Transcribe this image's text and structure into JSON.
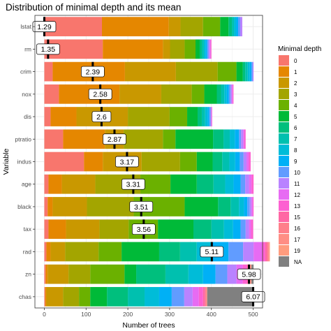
{
  "chart_data": {
    "type": "bar",
    "orientation": "horizontal",
    "stacked": true,
    "title": "Distribution of minimal depth and its mean",
    "xlabel": "Number of trees",
    "ylabel": "Variable",
    "xlim": [
      0,
      500
    ],
    "xticks": [
      0,
      100,
      200,
      300,
      400,
      500
    ],
    "grid": true,
    "legend_position": "right",
    "legend_title": "Minimal depth",
    "depth_levels": [
      "0",
      "1",
      "2",
      "3",
      "4",
      "5",
      "6",
      "7",
      "8",
      "9",
      "10",
      "11",
      "12",
      "13",
      "15",
      "16",
      "17",
      "19",
      "NA"
    ],
    "depth_colors": [
      "#F8766D",
      "#E58700",
      "#C99800",
      "#A3A500",
      "#6BB100",
      "#00BA38",
      "#00BF7D",
      "#00C0AF",
      "#00BCD8",
      "#00B0F6",
      "#619CFF",
      "#B983FF",
      "#E76BF3",
      "#FD61D1",
      "#FF67A4",
      "#FF7F8A",
      "#FF8E84",
      "#FF9C7E",
      "#808080"
    ],
    "categories": [
      "lstat",
      "rm",
      "crim",
      "nox",
      "dis",
      "ptratio",
      "indus",
      "age",
      "black",
      "tax",
      "rad",
      "zn",
      "chas"
    ],
    "counts": [
      [
        138,
        160,
        28,
        54,
        41,
        20,
        8,
        5,
        5,
        5,
        5,
        5,
        0,
        0,
        0,
        0,
        0,
        0,
        0
      ],
      [
        140,
        144,
        17,
        35,
        26,
        10,
        5,
        5,
        4,
        4,
        3,
        3,
        2,
        2,
        0,
        0,
        0,
        0,
        0
      ],
      [
        20,
        173,
        122,
        100,
        45,
        15,
        6,
        6,
        5,
        4,
        3,
        2,
        0,
        0,
        0,
        0,
        0,
        0,
        0
      ],
      [
        35,
        145,
        100,
        73,
        30,
        30,
        10,
        8,
        6,
        5,
        4,
        3,
        2,
        2,
        0,
        0,
        0,
        0,
        0
      ],
      [
        15,
        62,
        123,
        100,
        42,
        25,
        10,
        8,
        6,
        4,
        3,
        2,
        1,
        1,
        0,
        0,
        0,
        0,
        0
      ],
      [
        45,
        100,
        45,
        94,
        30,
        90,
        25,
        15,
        12,
        10,
        5,
        5,
        3,
        3,
        0,
        0,
        0,
        0,
        0
      ],
      [
        95,
        45,
        93,
        92,
        40,
        38,
        23,
        17,
        14,
        11,
        9,
        7,
        5,
        5,
        0,
        0,
        0,
        0,
        0
      ],
      [
        10,
        32,
        80,
        108,
        72,
        63,
        40,
        28,
        20,
        17,
        11,
        9,
        6,
        5,
        0,
        0,
        0,
        0,
        0
      ],
      [
        8,
        12,
        82,
        112,
        122,
        80,
        30,
        20,
        12,
        8,
        6,
        4,
        3,
        2,
        0,
        0,
        0,
        0,
        0
      ],
      [
        10,
        42,
        80,
        70,
        70,
        85,
        43,
        30,
        22,
        18,
        12,
        8,
        5,
        5,
        0,
        0,
        0,
        0,
        0
      ],
      [
        5,
        10,
        35,
        80,
        55,
        90,
        50,
        40,
        36,
        40,
        35,
        25,
        20,
        8,
        5,
        3,
        2,
        1,
        0
      ],
      [
        3,
        5,
        50,
        52,
        82,
        28,
        70,
        55,
        35,
        30,
        28,
        22,
        15,
        10,
        5,
        3,
        2,
        1,
        5
      ],
      [
        2,
        3,
        40,
        38,
        27,
        40,
        50,
        40,
        35,
        30,
        30,
        20,
        15,
        10,
        5,
        3,
        2,
        0,
        110
      ]
    ],
    "means": [
      1.29,
      1.35,
      2.39,
      2.58,
      2.6,
      2.87,
      3.17,
      3.31,
      3.51,
      3.56,
      5.11,
      5.98,
      6.07
    ],
    "mean_positions": [
      0,
      9,
      116,
      134,
      137,
      168,
      198,
      213,
      232,
      238,
      401,
      490,
      500
    ],
    "mean_labels": [
      "1.29",
      "1.35",
      "2.39",
      "2.58",
      "2.6",
      "2.87",
      "3.17",
      "3.31",
      "3.51",
      "3.56",
      "5.11",
      "5.98",
      "6.07"
    ]
  }
}
